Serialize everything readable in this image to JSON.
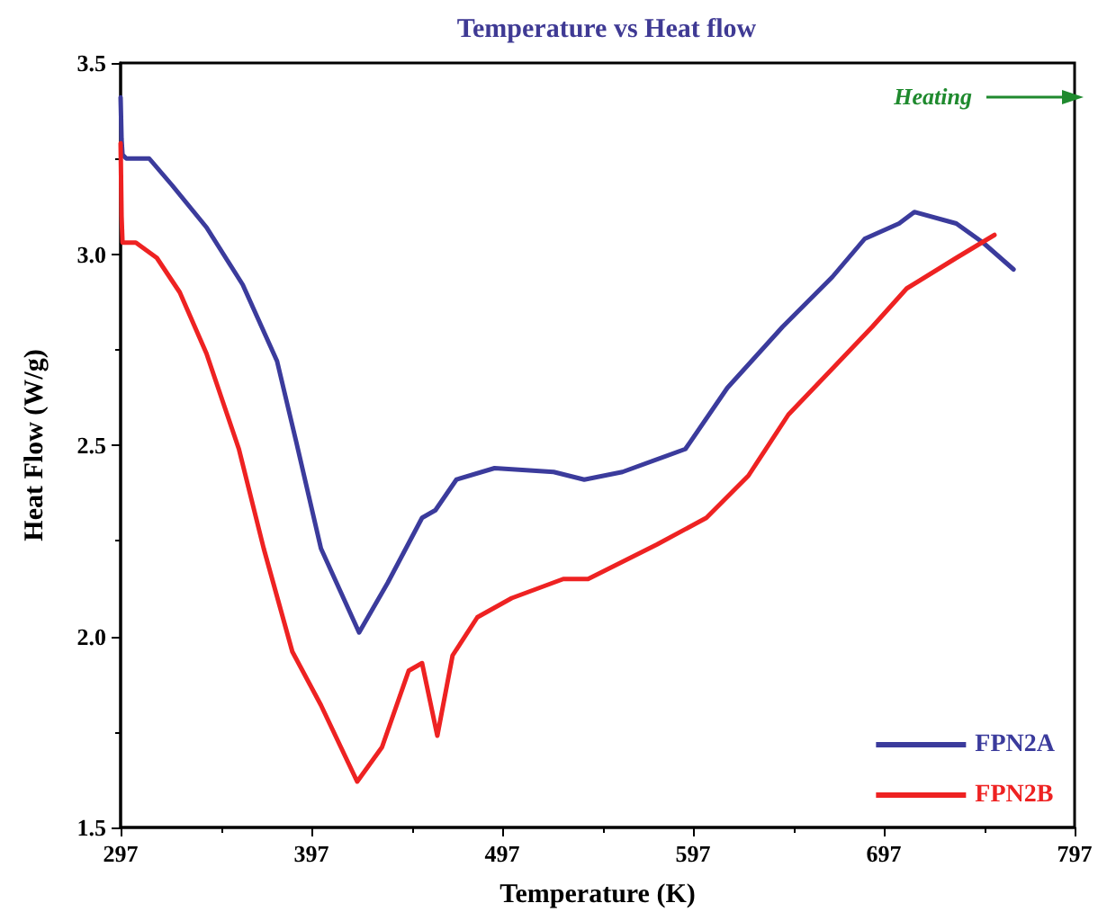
{
  "chart_data": {
    "type": "line",
    "title": "Temperature vs Heat flow",
    "xlabel": "Temperature (K)",
    "ylabel": "Heat Flow (W/g)",
    "xlim": [
      297,
      797
    ],
    "xticks": [
      297,
      397,
      497,
      597,
      697,
      797
    ],
    "ylim": [
      1.5,
      3.5
    ],
    "yticks": [
      1.5,
      {
        "value": 2,
        "label": "2.0"
      },
      2.5,
      {
        "value": 3,
        "label": "3.0"
      },
      3.5
    ],
    "grid": false,
    "legend": "bottom right",
    "marker": "none",
    "line_style": "solid",
    "annotations": [
      "Heating"
    ],
    "series": [
      {
        "name": "FPN2A",
        "color": "#3b3b9c",
        "x": [
          297,
          297.5,
          298,
          300,
          312,
          324,
          342,
          361,
          379,
          389,
          402,
          422,
          437,
          455,
          462,
          473,
          493,
          524,
          540,
          560,
          593,
          615,
          644,
          670,
          687,
          705,
          713,
          735,
          749,
          765
        ],
        "values": [
          3.41,
          3.3,
          3.26,
          3.25,
          3.25,
          3.18,
          3.07,
          2.92,
          2.72,
          2.51,
          2.23,
          2.01,
          2.14,
          2.31,
          2.33,
          2.41,
          2.44,
          2.43,
          2.41,
          2.43,
          2.49,
          2.65,
          2.81,
          2.94,
          3.04,
          3.08,
          3.11,
          3.08,
          3.03,
          2.96
        ]
      },
      {
        "name": "FPN2B",
        "color": "#ee2222",
        "x": [
          297,
          297.5,
          298,
          305,
          316,
          328,
          342,
          359,
          372,
          387,
          402,
          421,
          434,
          448,
          455,
          463,
          471,
          484,
          502,
          529,
          542,
          578,
          604,
          626,
          647,
          670,
          691,
          709,
          735,
          755
        ],
        "values": [
          3.29,
          3.1,
          3.03,
          3.03,
          2.99,
          2.9,
          2.74,
          2.49,
          2.23,
          1.96,
          1.82,
          1.62,
          1.71,
          1.91,
          1.93,
          1.74,
          1.95,
          2.05,
          2.1,
          2.15,
          2.15,
          2.24,
          2.31,
          2.42,
          2.58,
          2.7,
          2.81,
          2.91,
          2.99,
          3.05
        ]
      }
    ]
  }
}
